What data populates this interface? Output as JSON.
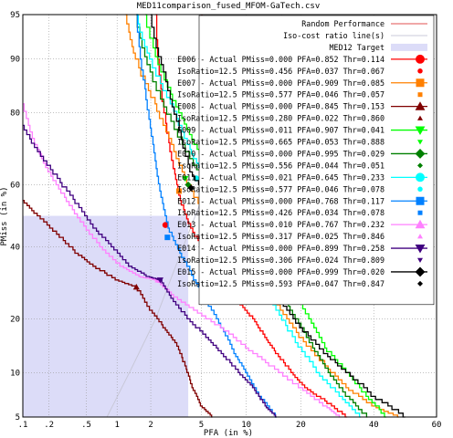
{
  "chart_data": {
    "type": "line",
    "title": "MED11comparison_fused_MFOM-GaTech.csv",
    "xlabel": "PFA (in %)",
    "ylabel": "PMiss (in %)",
    "x_scale": "normal-deviate",
    "y_scale": "normal-deviate",
    "xlim": [
      0.1,
      60
    ],
    "ylim": [
      5,
      95
    ],
    "x_ticks": [
      ".1",
      ".2",
      ".5",
      "1",
      "2",
      "5",
      "10",
      "20",
      "40",
      "60"
    ],
    "x_tick_values": [
      0.1,
      0.2,
      0.5,
      1,
      2,
      5,
      10,
      20,
      40,
      60
    ],
    "y_ticks": [
      "5",
      "10",
      "20",
      "40",
      "60",
      "80",
      "90",
      "95"
    ],
    "y_tick_values": [
      5,
      10,
      20,
      40,
      60,
      80,
      90,
      95
    ],
    "grid": true,
    "legend_position": "top-right",
    "reference_lines": [
      {
        "name": "Random Performance",
        "color": "#e05050"
      },
      {
        "name": "Iso-cost ratio line(s)",
        "color": "#c8c8d8"
      }
    ],
    "target": {
      "name": "MED12 Target",
      "pfa_max": 4,
      "pmiss_max": 50,
      "color": "#dcdcf8"
    },
    "series": [
      {
        "name": "E006 - Actual  PMiss=0.000 PFA=0.852 Thr=0.114",
        "iso": "IsoRatio=12.5  PMiss=0.456 PFA=0.037 Thr=0.067",
        "color": "#ff0000",
        "marker": "circle",
        "actual": [
          0.852,
          0.5
        ],
        "iso_point": [
          2.65,
          47
        ],
        "points": [
          [
            2.2,
            95
          ],
          [
            2.6,
            80
          ],
          [
            3.1,
            65
          ],
          [
            3.5,
            55
          ],
          [
            4.2,
            46
          ],
          [
            5.5,
            38
          ],
          [
            7,
            30
          ],
          [
            9,
            24
          ],
          [
            11,
            20
          ],
          [
            13,
            16
          ],
          [
            15,
            13
          ],
          [
            18,
            10
          ],
          [
            21,
            8
          ],
          [
            26,
            6.5
          ],
          [
            32,
            5
          ]
        ]
      },
      {
        "name": "E007 - Actual  PMiss=0.000 PFA=0.909 Thr=0.085",
        "iso": "IsoRatio=12.5  PMiss=0.577 PFA=0.046 Thr=0.057",
        "color": "#ff8000",
        "marker": "square",
        "actual": [
          0.909,
          0.5
        ],
        "iso_point": [
          3.4,
          58
        ],
        "points": [
          [
            1.2,
            95
          ],
          [
            1.5,
            90
          ],
          [
            2.2,
            82
          ],
          [
            3,
            72
          ],
          [
            4,
            60
          ],
          [
            6,
            48
          ],
          [
            9,
            38
          ],
          [
            12,
            30
          ],
          [
            16,
            22
          ],
          [
            20,
            16
          ],
          [
            26,
            11
          ],
          [
            32,
            8
          ],
          [
            40,
            6
          ],
          [
            48,
            5
          ]
        ]
      },
      {
        "name": "E008 - Actual  PMiss=0.000 PFA=0.845 Thr=0.153",
        "iso": "IsoRatio=12.5  PMiss=0.280 PFA=0.022 Thr=0.860",
        "color": "#800000",
        "marker": "triangle",
        "actual": [
          0.845,
          0.5
        ],
        "iso_point": [
          1.5,
          28
        ],
        "points": [
          [
            0.1,
            55
          ],
          [
            0.15,
            50
          ],
          [
            0.25,
            44
          ],
          [
            0.4,
            38
          ],
          [
            0.6,
            34
          ],
          [
            1,
            30
          ],
          [
            1.5,
            28
          ],
          [
            2,
            22
          ],
          [
            2.6,
            18
          ],
          [
            3.2,
            15
          ],
          [
            3.8,
            11
          ],
          [
            4.3,
            8
          ],
          [
            5,
            6
          ],
          [
            6,
            5
          ]
        ]
      },
      {
        "name": "E009 - Actual  PMiss=0.011 PFA=0.907 Thr=0.041",
        "iso": "IsoRatio=12.5  PMiss=0.665 PFA=0.053 Thr=0.888",
        "color": "#00ff00",
        "marker": "triangle-down",
        "actual": [
          0.907,
          1.1
        ],
        "iso_point": [
          3.8,
          62
        ],
        "points": [
          [
            1.8,
            95
          ],
          [
            2.5,
            88
          ],
          [
            3.5,
            80
          ],
          [
            4.5,
            72
          ],
          [
            6,
            64
          ],
          [
            8,
            55
          ],
          [
            11,
            45
          ],
          [
            14,
            36
          ],
          [
            18,
            27
          ],
          [
            22,
            20
          ],
          [
            26,
            14
          ],
          [
            32,
            10
          ],
          [
            38,
            7
          ],
          [
            44,
            5
          ]
        ]
      },
      {
        "name": "E010 - Actual  PMiss=0.000 PFA=0.995 Thr=0.029",
        "iso": "IsoRatio=12.5  PMiss=0.556 PFA=0.044 Thr=0.051",
        "color": "#008000",
        "marker": "diamond",
        "actual": [
          0.995,
          0.5
        ],
        "iso_point": [
          4,
          60
        ],
        "points": [
          [
            1.5,
            95
          ],
          [
            2,
            88
          ],
          [
            3,
            78
          ],
          [
            4.5,
            66
          ],
          [
            6,
            58
          ],
          [
            8,
            50
          ],
          [
            10,
            42
          ],
          [
            13,
            34
          ],
          [
            16,
            26
          ],
          [
            19,
            20
          ],
          [
            23,
            14
          ],
          [
            27,
            10
          ],
          [
            32,
            7
          ],
          [
            38,
            5
          ]
        ]
      },
      {
        "name": "E011 - Actual  PMiss=0.021 PFA=0.645 Thr=0.233",
        "iso": "IsoRatio=12.5  PMiss=0.577 PFA=0.046 Thr=0.078",
        "color": "#00ffff",
        "marker": "circle",
        "actual": [
          0.645,
          2.1
        ],
        "iso_point": [
          4.6,
          62
        ],
        "points": [
          [
            1.5,
            95
          ],
          [
            2,
            90
          ],
          [
            3,
            82
          ],
          [
            4,
            72
          ],
          [
            5,
            64
          ],
          [
            6.5,
            56
          ],
          [
            8,
            48
          ],
          [
            10,
            38
          ],
          [
            12,
            30
          ],
          [
            15,
            22
          ],
          [
            19,
            15
          ],
          [
            24,
            10
          ],
          [
            30,
            7
          ],
          [
            36,
            5
          ]
        ]
      },
      {
        "name": "E012 - Actual  PMiss=0.000 PFA=0.768 Thr=0.117",
        "iso": "IsoRatio=12.5  PMiss=0.426 PFA=0.034 Thr=0.078",
        "color": "#0080ff",
        "marker": "square",
        "actual": [
          0.768,
          0.5
        ],
        "iso_point": [
          2.75,
          43
        ],
        "points": [
          [
            1.5,
            95
          ],
          [
            1.8,
            85
          ],
          [
            2.1,
            72
          ],
          [
            2.4,
            58
          ],
          [
            2.8,
            46
          ],
          [
            3.5,
            38
          ],
          [
            4.5,
            30
          ],
          [
            5.5,
            24
          ],
          [
            7,
            18
          ],
          [
            8.5,
            13
          ],
          [
            10,
            10
          ],
          [
            12,
            7
          ],
          [
            15,
            5
          ]
        ]
      },
      {
        "name": "E013 - Actual  PMiss=0.010 PFA=0.767 Thr=0.232",
        "iso": "IsoRatio=12.5  PMiss=0.317 PFA=0.025 Thr=0.846",
        "color": "#ff80ff",
        "marker": "triangle",
        "actual": [
          0.767,
          1
        ],
        "iso_point": [
          2.3,
          30
        ],
        "points": [
          [
            0.1,
            82
          ],
          [
            0.14,
            72
          ],
          [
            0.2,
            64
          ],
          [
            0.3,
            56
          ],
          [
            0.45,
            48
          ],
          [
            0.7,
            40
          ],
          [
            1.1,
            34
          ],
          [
            1.6,
            31
          ],
          [
            2.2,
            30
          ],
          [
            3,
            26
          ],
          [
            4.5,
            22
          ],
          [
            7,
            18
          ],
          [
            10,
            14
          ],
          [
            14,
            11
          ],
          [
            20,
            8
          ],
          [
            26,
            6
          ],
          [
            30,
            5
          ]
        ]
      },
      {
        "name": "E014 - Actual  PMiss=0.000 PFA=0.899 Thr=0.258",
        "iso": "IsoRatio=12.5  PMiss=0.306 PFA=0.024 Thr=0.809",
        "color": "#400080",
        "marker": "triangle-down",
        "actual": [
          0.899,
          0.5
        ],
        "iso_point": [
          2.4,
          30
        ],
        "points": [
          [
            0.1,
            77
          ],
          [
            0.15,
            70
          ],
          [
            0.25,
            62
          ],
          [
            0.4,
            54
          ],
          [
            0.6,
            46
          ],
          [
            0.9,
            40
          ],
          [
            1.3,
            34
          ],
          [
            1.9,
            31
          ],
          [
            2.4,
            30
          ],
          [
            3,
            25
          ],
          [
            4,
            20
          ],
          [
            5.5,
            16
          ],
          [
            7,
            13
          ],
          [
            9,
            10
          ],
          [
            11,
            8
          ],
          [
            13,
            6
          ],
          [
            15,
            5
          ]
        ]
      },
      {
        "name": "E015 - Actual  PMiss=0.000 PFA=0.999 Thr=0.020",
        "iso": "IsoRatio=12.5  PMiss=0.593 PFA=0.047 Thr=0.847",
        "color": "#000000",
        "marker": "diamond",
        "actual": [
          0.999,
          0.5
        ],
        "iso_point": [
          4.2,
          59
        ],
        "points": [
          [
            2,
            95
          ],
          [
            2.6,
            88
          ],
          [
            3.3,
            78
          ],
          [
            4.2,
            64
          ],
          [
            5.5,
            56
          ],
          [
            7,
            48
          ],
          [
            9,
            40
          ],
          [
            12,
            32
          ],
          [
            16,
            24
          ],
          [
            20,
            18
          ],
          [
            26,
            13
          ],
          [
            32,
            10
          ],
          [
            40,
            7
          ],
          [
            50,
            5
          ]
        ]
      }
    ]
  }
}
